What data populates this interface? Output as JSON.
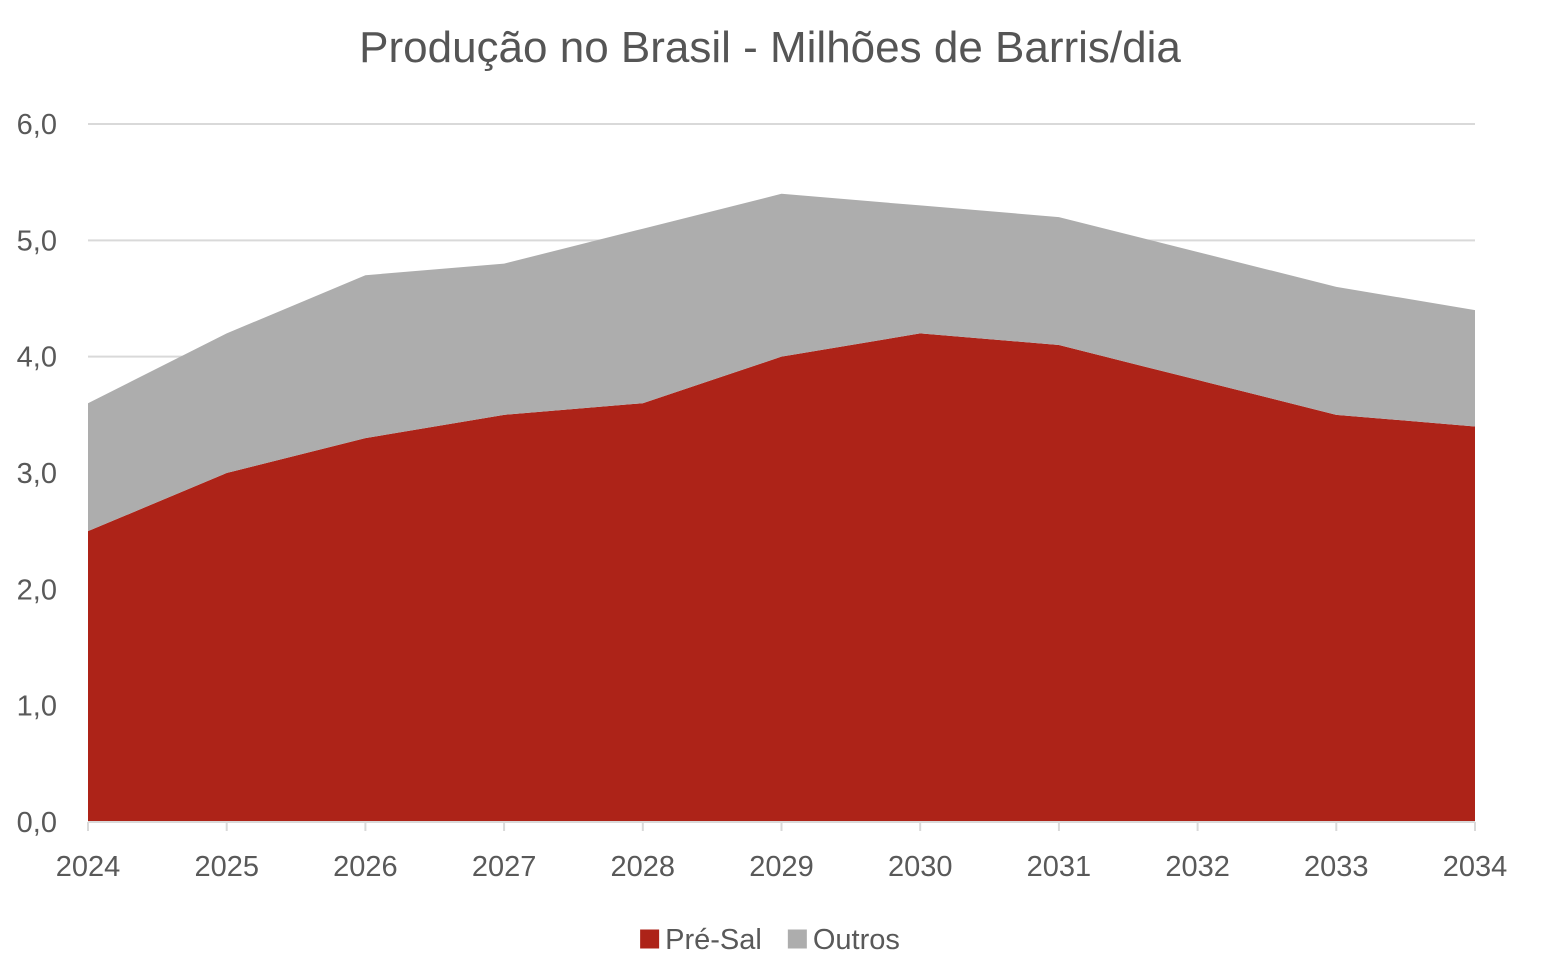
{
  "chart_data": {
    "type": "area",
    "stacked": true,
    "title": "Produção no Brasil - Milhões de Barris/dia",
    "xlabel": "",
    "ylabel": "",
    "categories": [
      "2024",
      "2025",
      "2026",
      "2027",
      "2028",
      "2029",
      "2030",
      "2031",
      "2032",
      "2033",
      "2034"
    ],
    "ylim": [
      0,
      6
    ],
    "yticks": [
      0,
      1,
      2,
      3,
      4,
      5,
      6
    ],
    "ytick_labels": [
      "0,0",
      "1,0",
      "2,0",
      "3,0",
      "4,0",
      "5,0",
      "6,0"
    ],
    "grid": true,
    "legend_position": "bottom",
    "series": [
      {
        "name": "Pré-Sal",
        "color": "#ad2318",
        "values": [
          2.5,
          3.0,
          3.3,
          3.5,
          3.6,
          4.0,
          4.2,
          4.1,
          3.8,
          3.5,
          3.4
        ]
      },
      {
        "name": "Outros",
        "color": "#adadad",
        "values": [
          1.1,
          1.2,
          1.4,
          1.3,
          1.5,
          1.4,
          1.1,
          1.1,
          1.1,
          1.1,
          1.0
        ]
      }
    ]
  }
}
